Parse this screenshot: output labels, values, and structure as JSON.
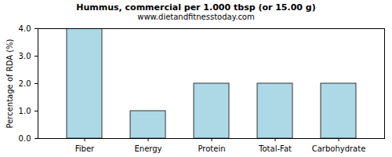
{
  "chart_data": {
    "type": "bar",
    "title": "Hummus, commercial per 1.000 tbsp (or 15.00 g)",
    "subtitle": "www.dietandfitnesstoday.com",
    "y_label": "Percentage of RDA (%)",
    "categories": [
      "Fiber",
      "Energy",
      "Protein",
      "Total-Fat",
      "Carbohydrate"
    ],
    "values": [
      4,
      1,
      2,
      2,
      2
    ],
    "color": "#add8e6",
    "ylim": [
      0,
      4
    ],
    "yticks": [
      {
        "value": 0,
        "label": "0.0"
      },
      {
        "value": 1,
        "label": "1.0"
      },
      {
        "value": 2,
        "label": "2.0"
      },
      {
        "value": 3,
        "label": "3.0"
      },
      {
        "value": 4,
        "label": "4.0"
      }
    ],
    "grid": false
  }
}
